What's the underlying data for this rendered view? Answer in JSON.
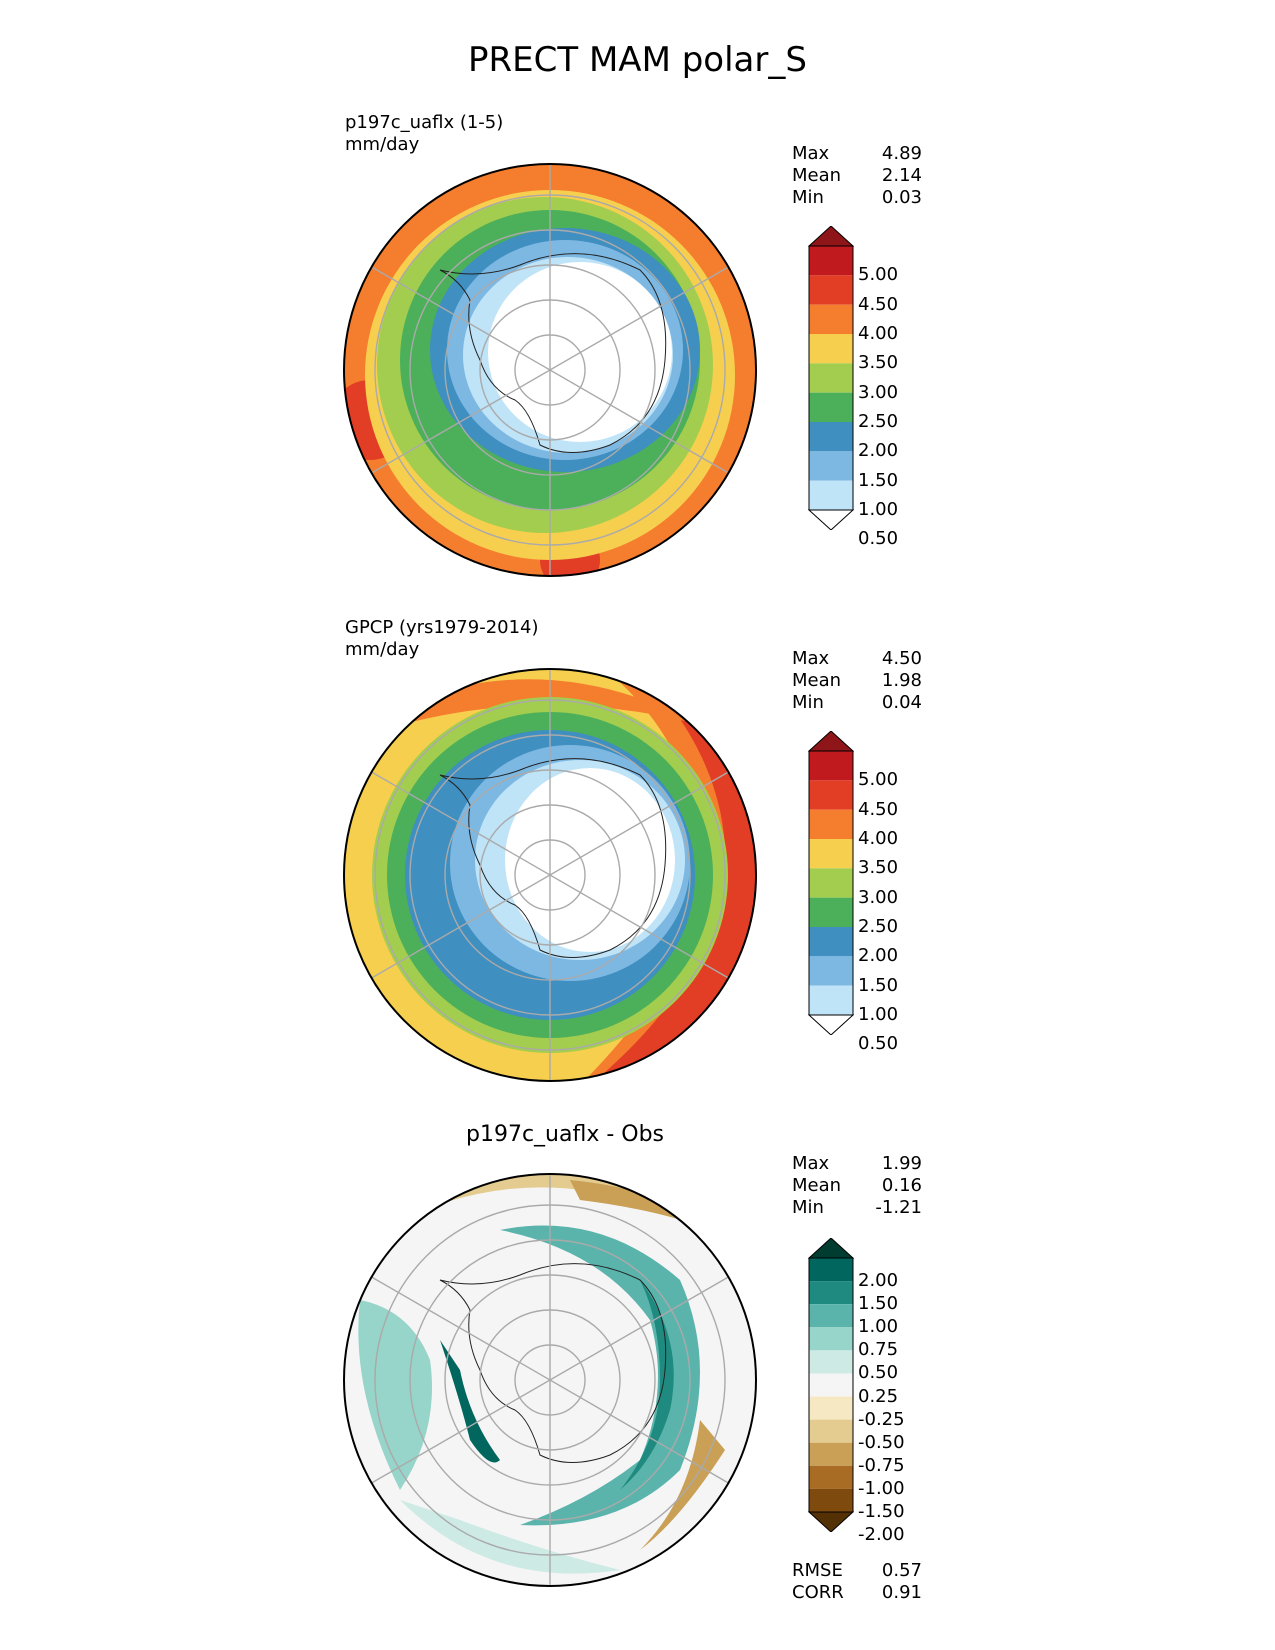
{
  "title": "PRECT MAM polar_S",
  "panels": [
    {
      "id": "model",
      "title_line1": "p197c_uaflx (1-5)",
      "title_line2": "mm/day",
      "stats": [
        {
          "label": "Max",
          "value": "4.89"
        },
        {
          "label": "Mean",
          "value": "2.14"
        },
        {
          "label": "Min",
          "value": "0.03"
        }
      ],
      "colorbar": {
        "labels": [
          "5.00",
          "4.50",
          "4.00",
          "3.50",
          "3.00",
          "2.50",
          "2.00",
          "1.50",
          "1.00",
          "0.50"
        ],
        "colors": [
          "#8e1518",
          "#c01a1f",
          "#e23e26",
          "#f57d2e",
          "#f7cf4f",
          "#a3cd4e",
          "#4caf5a",
          "#3f8fc1",
          "#7db8e3",
          "#bfe3f7",
          "#ffffff"
        ]
      }
    },
    {
      "id": "obs",
      "title_line1": "GPCP (yrs1979-2014)",
      "title_line2": "mm/day",
      "stats": [
        {
          "label": "Max",
          "value": "4.50"
        },
        {
          "label": "Mean",
          "value": "1.98"
        },
        {
          "label": "Min",
          "value": "0.04"
        }
      ],
      "colorbar": {
        "labels": [
          "5.00",
          "4.50",
          "4.00",
          "3.50",
          "3.00",
          "2.50",
          "2.00",
          "1.50",
          "1.00",
          "0.50"
        ],
        "colors": [
          "#8e1518",
          "#c01a1f",
          "#e23e26",
          "#f57d2e",
          "#f7cf4f",
          "#a3cd4e",
          "#4caf5a",
          "#3f8fc1",
          "#7db8e3",
          "#bfe3f7",
          "#ffffff"
        ]
      }
    },
    {
      "id": "diff",
      "title": "p197c_uaflx - Obs",
      "stats": [
        {
          "label": "Max",
          "value": "1.99"
        },
        {
          "label": "Mean",
          "value": "0.16"
        },
        {
          "label": "Min",
          "value": "-1.21"
        }
      ],
      "footer_stats": [
        {
          "label": "RMSE",
          "value": "0.57"
        },
        {
          "label": "CORR",
          "value": "0.91"
        }
      ],
      "colorbar": {
        "labels": [
          "2.00",
          "1.50",
          "1.00",
          "0.75",
          "0.50",
          "0.25",
          "-0.25",
          "-0.50",
          "-0.75",
          "-1.00",
          "-1.50",
          "-2.00"
        ],
        "colors": [
          "#003c30",
          "#01665e",
          "#1f8a7f",
          "#5ab4ac",
          "#97d4c9",
          "#cdeae5",
          "#f5f5f5",
          "#f6e8c3",
          "#e4cb8f",
          "#c9a055",
          "#a86c25",
          "#7f4a0e",
          "#543005"
        ]
      }
    }
  ]
}
